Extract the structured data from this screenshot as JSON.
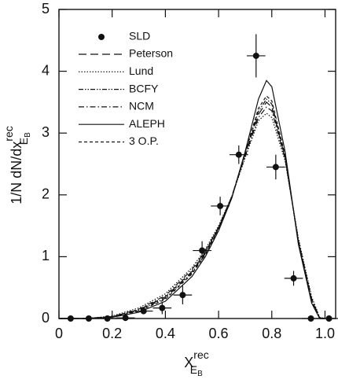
{
  "chart_data": {
    "type": "line",
    "xlabel": {
      "main": "X",
      "sup": "rec",
      "sub": "E",
      "subsub": "B"
    },
    "ylabel": {
      "main": "1/N dN/dx",
      "sup": "rec",
      "sub": "E",
      "subsub": "B"
    },
    "xlim": [
      0,
      1.04
    ],
    "ylim": [
      0,
      5
    ],
    "xticks": [
      0,
      0.2,
      0.4,
      0.6,
      0.8,
      {
        "value": 1,
        "label": "1.0"
      }
    ],
    "yticks": [
      0,
      1,
      2,
      3,
      4,
      5
    ],
    "points": {
      "name": "SLD",
      "color": "#111111",
      "x": [
        0.044,
        0.112,
        0.182,
        0.25,
        0.318,
        0.388,
        0.465,
        0.538,
        0.606,
        0.676,
        0.741,
        0.815,
        0.882,
        0.947,
        1.015
      ],
      "values": [
        0,
        0,
        0,
        0.01,
        0.12,
        0.17,
        0.38,
        1.1,
        1.82,
        2.65,
        4.25,
        2.45,
        0.65,
        0,
        0
      ],
      "xerr": [
        0.035,
        0.035,
        0.035,
        0.035,
        0.035,
        0.035,
        0.035,
        0.035,
        0.035,
        0.035,
        0.035,
        0.035,
        0.035,
        0.035,
        0.035
      ],
      "yerr": [
        0.02,
        0.02,
        0.02,
        0.03,
        0.05,
        0.1,
        0.15,
        0.15,
        0.15,
        0.15,
        0.35,
        0.2,
        0.12,
        0.02,
        0.02
      ]
    },
    "curve_x": [
      0,
      0.1,
      0.2,
      0.3,
      0.4,
      0.5,
      0.55,
      0.6,
      0.65,
      0.7,
      0.75,
      0.78,
      0.8,
      0.85,
      0.9,
      0.95,
      0.98,
      1.0
    ],
    "series": [
      {
        "name": "Peterson",
        "color": "#111111",
        "dash": "10,5",
        "values": [
          0,
          0,
          0.03,
          0.14,
          0.35,
          0.76,
          1.07,
          1.47,
          1.98,
          2.66,
          3.3,
          3.5,
          3.42,
          2.6,
          1.25,
          0.3,
          0.01,
          0
        ]
      },
      {
        "name": "Lund",
        "color": "#111111",
        "dash": "1.5,2",
        "values": [
          0,
          0,
          0.04,
          0.17,
          0.4,
          0.82,
          1.12,
          1.5,
          1.98,
          2.6,
          3.2,
          3.32,
          3.25,
          2.55,
          1.3,
          0.35,
          0.02,
          0
        ]
      },
      {
        "name": "BCFY",
        "color": "#111111",
        "dash": "6,2,1.5,2,1.5,2",
        "values": [
          0,
          0,
          0.03,
          0.13,
          0.33,
          0.74,
          1.05,
          1.46,
          1.97,
          2.68,
          3.35,
          3.55,
          3.47,
          2.62,
          1.24,
          0.28,
          0.01,
          0
        ]
      },
      {
        "name": "NCM",
        "color": "#111111",
        "dash": "7,3,1.5,3",
        "values": [
          0,
          0,
          0.03,
          0.15,
          0.37,
          0.79,
          1.09,
          1.48,
          1.97,
          2.63,
          3.25,
          3.42,
          3.36,
          2.58,
          1.27,
          0.32,
          0.01,
          0
        ]
      },
      {
        "name": "ALEPH",
        "color": "#111111",
        "dash": "none",
        "values": [
          0,
          0,
          0.02,
          0.1,
          0.28,
          0.68,
          1.0,
          1.42,
          1.95,
          2.7,
          3.55,
          3.85,
          3.75,
          2.7,
          1.2,
          0.25,
          0,
          0
        ]
      },
      {
        "name": "3 O.P.",
        "color": "#111111",
        "dash": "4,3",
        "values": [
          0,
          0,
          0.02,
          0.12,
          0.31,
          0.72,
          1.03,
          1.45,
          1.97,
          2.69,
          3.4,
          3.6,
          3.52,
          2.64,
          1.22,
          0.27,
          0,
          0
        ]
      }
    ]
  }
}
